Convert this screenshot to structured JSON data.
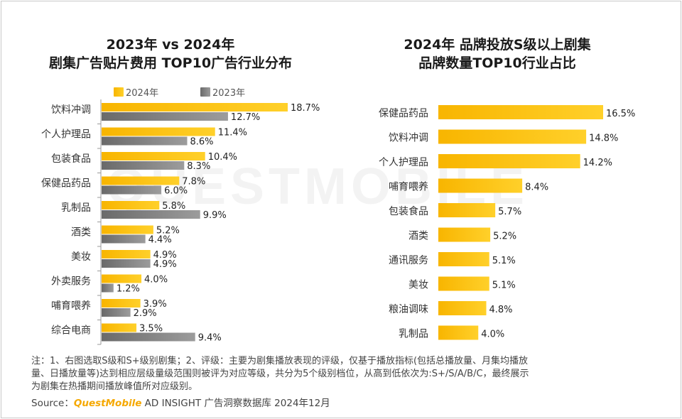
{
  "watermark": "QUESTMOBILE",
  "left_chart": {
    "title_line1": "2023年 vs 2024年",
    "title_line2": "剧集广告贴片费用 TOP10广告行业分布"
  },
  "right_chart": {
    "title_line1": "2024年 品牌投放S级以上剧集",
    "title_line2": "品牌数量TOP10行业占比"
  },
  "colors": {
    "yellow_start": "#f8b500",
    "yellow_end": "#ffd02a",
    "gray_start": "#6a6a6a",
    "gray_end": "#9c9c9c",
    "axis": "#9a9a9a"
  },
  "chart_data": [
    {
      "type": "bar",
      "orientation": "horizontal",
      "title": "2023年 vs 2024年 剧集广告贴片费用 TOP10广告行业分布",
      "categories": [
        "饮料冲调",
        "个人护理品",
        "包装食品",
        "保健品药品",
        "乳制品",
        "酒类",
        "美妆",
        "外卖服务",
        "哺育喂养",
        "综合电商"
      ],
      "series": [
        {
          "name": "2024年",
          "values": [
            18.7,
            11.4,
            10.4,
            7.8,
            5.8,
            5.2,
            4.9,
            4.0,
            3.9,
            3.5
          ],
          "labels": [
            "18.7%",
            "11.4%",
            "10.4%",
            "7.8%",
            "5.8%",
            "5.2%",
            "4.9%",
            "4.0%",
            "3.9%",
            "3.5%"
          ]
        },
        {
          "name": "2023年",
          "values": [
            12.7,
            8.6,
            8.3,
            6.0,
            9.9,
            4.4,
            4.9,
            1.2,
            2.9,
            9.4
          ],
          "labels": [
            "12.7%",
            "8.6%",
            "8.3%",
            "6.0%",
            "9.9%",
            "4.4%",
            "4.9%",
            "1.2%",
            "2.9%",
            "9.4%"
          ]
        }
      ],
      "legend": [
        "2024年",
        "2023年"
      ],
      "unit": "%"
    },
    {
      "type": "bar",
      "orientation": "horizontal",
      "title": "2024年 品牌投放S级以上剧集 品牌数量TOP10行业占比",
      "categories": [
        "保健品药品",
        "饮料冲调",
        "个人护理品",
        "哺育喂养",
        "包装食品",
        "酒类",
        "通讯服务",
        "美妆",
        "粮油调味",
        "乳制品"
      ],
      "series": [
        {
          "name": "2024年",
          "values": [
            16.5,
            14.8,
            14.2,
            8.4,
            5.7,
            5.2,
            5.1,
            5.1,
            4.8,
            4.0
          ],
          "labels": [
            "16.5%",
            "14.8%",
            "14.2%",
            "8.4%",
            "5.7%",
            "5.2%",
            "5.1%",
            "5.1%",
            "4.8%",
            "4.0%"
          ]
        }
      ],
      "unit": "%"
    }
  ],
  "note_lines": [
    "注：1、右图选取S级和S+级别剧集；2、评级：主要为剧集播放表现的评级，仅基于播放指标(包括总播放量、月集均播放",
    "量、日播放量等)达到相应层级量级范围则被评为对应等级，共分为5个级别档位，从高到低依次为:S+/S/A/B/C，最终展示",
    "为剧集在热播期间播放峰值所对应级别。"
  ],
  "source": {
    "label": "Source：",
    "brand": "QuestMobile",
    "text": " AD INSIGHT 广告洞察数据库 2024年12月"
  }
}
